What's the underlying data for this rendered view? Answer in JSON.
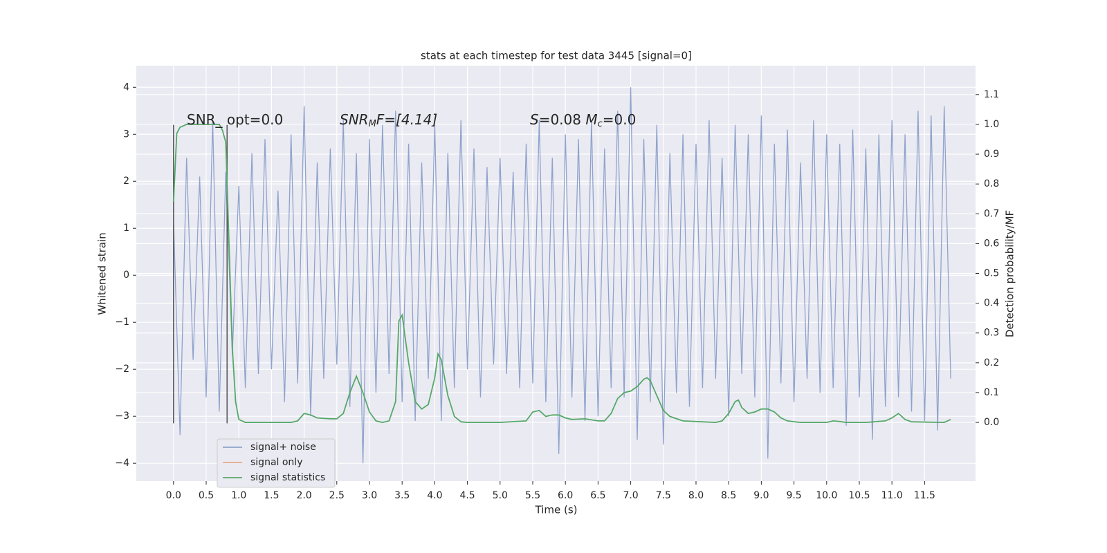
{
  "chart_data": {
    "type": "line",
    "title": "stats at each timestep for test data 3445 [signal=0]",
    "xlabel": "Time (s)",
    "ylabel": "Whitened strain",
    "y2label": "Detection probability/MF",
    "xlim": [
      -0.57,
      12.28
    ],
    "ylim": [
      -4.38,
      4.46
    ],
    "y2lim": [
      -0.197,
      1.197
    ],
    "xticks": [
      {
        "value": 0,
        "label": "0.0"
      },
      0.5,
      {
        "value": 1,
        "label": "1.0"
      },
      1.5,
      {
        "value": 2,
        "label": "2.0"
      },
      2.5,
      {
        "value": 3,
        "label": "3.0"
      },
      3.5,
      {
        "value": 4,
        "label": "4.0"
      },
      4.5,
      {
        "value": 5,
        "label": "5.0"
      },
      5.5,
      {
        "value": 6,
        "label": "6.0"
      },
      6.5,
      {
        "value": 7,
        "label": "7.0"
      },
      7.5,
      {
        "value": 8,
        "label": "8.0"
      },
      8.5,
      {
        "value": 9,
        "label": "9.0"
      },
      9.5,
      {
        "value": 10,
        "label": "10.0"
      },
      10.5,
      {
        "value": 11,
        "label": "11.0"
      },
      11.5
    ],
    "yticks": [
      {
        "value": -4,
        "label": "−4"
      },
      {
        "value": -3,
        "label": "−3"
      },
      {
        "value": -2,
        "label": "−2"
      },
      {
        "value": -1,
        "label": "−1"
      },
      0,
      1,
      2,
      3,
      4
    ],
    "y2ticks": [
      {
        "value": 0,
        "label": "0.0"
      },
      0.1,
      0.2,
      0.3,
      0.4,
      0.5,
      0.6,
      0.7,
      0.8,
      0.9,
      {
        "value": 1,
        "label": "1.0"
      },
      1.1
    ],
    "grid": true,
    "legend": "lower left",
    "annotations": [
      {
        "parts": [
          "SNR_ opt=0.0"
        ]
      },
      {
        "parts": [
          "SNR",
          "M",
          "F=[4.14]"
        ]
      },
      {
        "parts": [
          "S",
          "=0.08   ",
          "M",
          "c",
          "=0.0"
        ]
      }
    ],
    "vlines": {
      "color": "#555555",
      "x": [
        0,
        0.82
      ],
      "ymin": -3.15,
      "ymax": 3.2
    },
    "series": [
      {
        "name": "signal+ noise",
        "color": "#8fa3cc",
        "x": [
          0,
          0.1,
          0.2,
          0.3,
          0.4,
          0.5,
          0.6,
          0.7,
          0.8,
          0.9,
          1,
          1.1,
          1.2,
          1.3,
          1.4,
          1.5,
          1.6,
          1.7,
          1.8,
          1.9,
          2,
          2.1,
          2.2,
          2.3,
          2.4,
          2.5,
          2.6,
          2.7,
          2.8,
          2.9,
          3,
          3.1,
          3.2,
          3.3,
          3.4,
          3.5,
          3.6,
          3.7,
          3.8,
          3.9,
          4,
          4.1,
          4.2,
          4.3,
          4.4,
          4.5,
          4.6,
          4.7,
          4.8,
          4.9,
          5,
          5.1,
          5.2,
          5.3,
          5.4,
          5.5,
          5.6,
          5.7,
          5.8,
          5.9,
          6,
          6.1,
          6.2,
          6.3,
          6.4,
          6.5,
          6.6,
          6.7,
          6.8,
          6.9,
          7,
          7.1,
          7.2,
          7.3,
          7.4,
          7.5,
          7.6,
          7.7,
          7.8,
          7.9,
          8,
          8.1,
          8.2,
          8.3,
          8.4,
          8.5,
          8.6,
          8.7,
          8.8,
          8.9,
          9,
          9.1,
          9.2,
          9.3,
          9.4,
          9.5,
          9.6,
          9.7,
          9.8,
          9.9,
          10,
          10.1,
          10.2,
          10.3,
          10.4,
          10.5,
          10.6,
          10.7,
          10.8,
          10.9,
          11,
          11.1,
          11.2,
          11.3,
          11.4,
          11.5,
          11.6,
          11.7,
          11.8,
          11.9
        ],
        "values": [
          1.2,
          -3.4,
          2.5,
          -1.8,
          2.1,
          -2.6,
          3.3,
          -2.9,
          2.2,
          -1.7,
          1.9,
          -2.4,
          2.6,
          -2.1,
          2.9,
          -2.0,
          1.8,
          -2.7,
          3.0,
          -2.3,
          3.6,
          -3.0,
          2.4,
          -2.2,
          2.7,
          -1.9,
          3.3,
          -2.8,
          2.6,
          -4.0,
          2.9,
          -2.5,
          3.2,
          -2.1,
          3.5,
          -2.7,
          2.8,
          -3.1,
          2.4,
          -2.2,
          3.2,
          -3.1,
          2.6,
          -2.4,
          3.3,
          -2.0,
          2.7,
          -2.6,
          2.3,
          -1.9,
          2.5,
          -2.1,
          2.2,
          -2.4,
          2.8,
          -2.3,
          3.3,
          -2.7,
          2.5,
          -3.8,
          3.0,
          -2.6,
          2.9,
          -3.1,
          3.3,
          -3.0,
          2.7,
          -2.4,
          3.5,
          -2.6,
          4.0,
          -3.5,
          2.9,
          -2.7,
          3.2,
          -3.6,
          2.6,
          -2.5,
          3.0,
          -2.8,
          2.8,
          -2.4,
          3.3,
          -2.2,
          2.5,
          -3.0,
          3.2,
          -2.1,
          3.0,
          -2.6,
          3.4,
          -3.9,
          2.8,
          -2.3,
          3.1,
          -2.7,
          2.4,
          -2.2,
          3.3,
          -2.5,
          3.0,
          -2.4,
          2.8,
          -3.2,
          3.1,
          -2.6,
          2.7,
          -3.5,
          3.0,
          -2.8,
          3.3,
          -2.6,
          3.0,
          -2.9,
          3.5,
          -3.1,
          3.4,
          -3.3,
          3.6,
          -2.2
        ]
      },
      {
        "name": "signal only",
        "color": "#e8a98c"
      },
      {
        "name": "signal statistics",
        "color": "#55a868",
        "axis": "y2",
        "x": [
          0,
          0.05,
          0.1,
          0.2,
          0.3,
          0.5,
          0.7,
          0.75,
          0.8,
          0.85,
          0.9,
          0.95,
          1,
          1.1,
          1.5,
          1.8,
          1.9,
          2,
          2.1,
          2.2,
          2.4,
          2.5,
          2.6,
          2.7,
          2.8,
          2.9,
          3,
          3.1,
          3.2,
          3.3,
          3.4,
          3.45,
          3.5,
          3.6,
          3.7,
          3.8,
          3.9,
          4,
          4.05,
          4.1,
          4.2,
          4.3,
          4.4,
          4.5,
          5,
          5.4,
          5.5,
          5.6,
          5.7,
          5.8,
          5.9,
          6,
          6.1,
          6.3,
          6.5,
          6.6,
          6.7,
          6.8,
          6.9,
          7,
          7.1,
          7.2,
          7.25,
          7.3,
          7.4,
          7.5,
          7.6,
          7.8,
          8,
          8.3,
          8.4,
          8.5,
          8.6,
          8.65,
          8.7,
          8.8,
          8.9,
          9,
          9.1,
          9.2,
          9.3,
          9.4,
          9.6,
          10,
          10.1,
          10.2,
          10.3,
          10.6,
          10.9,
          11,
          11.1,
          11.2,
          11.3,
          11.8,
          11.9
        ],
        "values": [
          0.74,
          0.97,
          0.99,
          1.0,
          1.0,
          1.0,
          1.0,
          0.98,
          0.94,
          0.6,
          0.25,
          0.07,
          0.01,
          0.0,
          0.0,
          0.0,
          0.005,
          0.03,
          0.025,
          0.015,
          0.012,
          0.012,
          0.03,
          0.1,
          0.155,
          0.1,
          0.035,
          0.005,
          0.0,
          0.005,
          0.07,
          0.34,
          0.36,
          0.2,
          0.07,
          0.045,
          0.06,
          0.15,
          0.23,
          0.21,
          0.09,
          0.02,
          0.002,
          0.0,
          0.0,
          0.005,
          0.035,
          0.04,
          0.02,
          0.025,
          0.025,
          0.015,
          0.01,
          0.012,
          0.005,
          0.005,
          0.03,
          0.08,
          0.1,
          0.105,
          0.12,
          0.145,
          0.15,
          0.14,
          0.09,
          0.04,
          0.02,
          0.005,
          0.003,
          0.0,
          0.005,
          0.03,
          0.07,
          0.075,
          0.05,
          0.03,
          0.035,
          0.045,
          0.045,
          0.035,
          0.015,
          0.005,
          0.0,
          0.0,
          0.005,
          0.003,
          0.0,
          0.0,
          0.005,
          0.015,
          0.03,
          0.01,
          0.002,
          0.0,
          0.01
        ]
      }
    ]
  }
}
